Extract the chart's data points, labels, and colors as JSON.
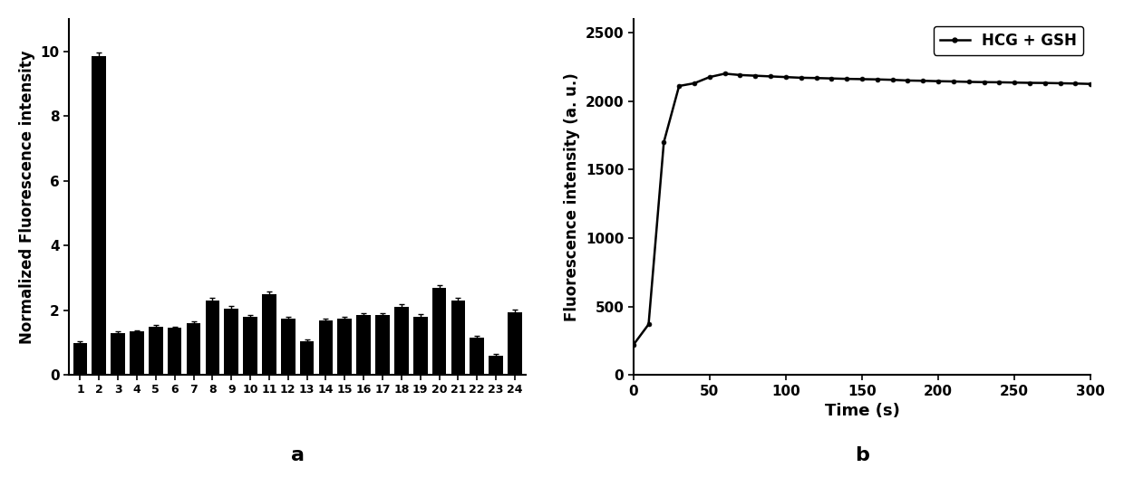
{
  "bar_categories": [
    "1",
    "2",
    "3",
    "4",
    "5",
    "6",
    "7",
    "8",
    "9",
    "10",
    "11",
    "12",
    "13",
    "14",
    "15",
    "16",
    "17",
    "18",
    "19",
    "20",
    "21",
    "22",
    "23",
    "24"
  ],
  "bar_values": [
    1.0,
    9.85,
    1.3,
    1.35,
    1.5,
    1.45,
    1.6,
    2.3,
    2.05,
    1.8,
    2.5,
    1.75,
    1.05,
    1.7,
    1.75,
    1.85,
    1.85,
    2.1,
    1.8,
    2.7,
    2.3,
    1.15,
    0.6,
    1.95
  ],
  "bar_errors": [
    0.05,
    0.1,
    0.04,
    0.04,
    0.04,
    0.04,
    0.05,
    0.08,
    0.07,
    0.06,
    0.08,
    0.06,
    0.04,
    0.05,
    0.06,
    0.05,
    0.06,
    0.08,
    0.07,
    0.09,
    0.08,
    0.05,
    0.04,
    0.06
  ],
  "bar_color": "#000000",
  "bar_ylabel": "Normalized Fluorescence intensity",
  "bar_ylim": [
    0,
    11
  ],
  "bar_yticks": [
    0,
    2,
    4,
    6,
    8,
    10
  ],
  "bar_label": "a",
  "line_x": [
    0,
    10,
    20,
    30,
    40,
    50,
    60,
    70,
    80,
    90,
    100,
    110,
    120,
    130,
    140,
    150,
    160,
    170,
    180,
    190,
    200,
    210,
    220,
    230,
    240,
    250,
    260,
    270,
    280,
    290,
    300
  ],
  "line_y": [
    220,
    370,
    1700,
    2110,
    2130,
    2175,
    2200,
    2190,
    2185,
    2180,
    2175,
    2170,
    2168,
    2165,
    2162,
    2160,
    2158,
    2155,
    2150,
    2148,
    2145,
    2143,
    2140,
    2138,
    2137,
    2135,
    2133,
    2132,
    2130,
    2128,
    2125
  ],
  "line_color": "#000000",
  "line_ylabel": "Fluorescence intensity (a. u.)",
  "line_xlabel": "Time (s)",
  "line_ylim": [
    0,
    2600
  ],
  "line_yticks": [
    0,
    500,
    1000,
    1500,
    2000,
    2500
  ],
  "line_xlim": [
    0,
    300
  ],
  "line_xticks": [
    0,
    50,
    100,
    150,
    200,
    250,
    300
  ],
  "line_legend": "HCG + GSH",
  "line_label": "b",
  "background_color": "#ffffff",
  "axis_label_fontsize": 12,
  "tick_fontsize": 11,
  "legend_fontsize": 12,
  "panel_label_fontsize": 16
}
